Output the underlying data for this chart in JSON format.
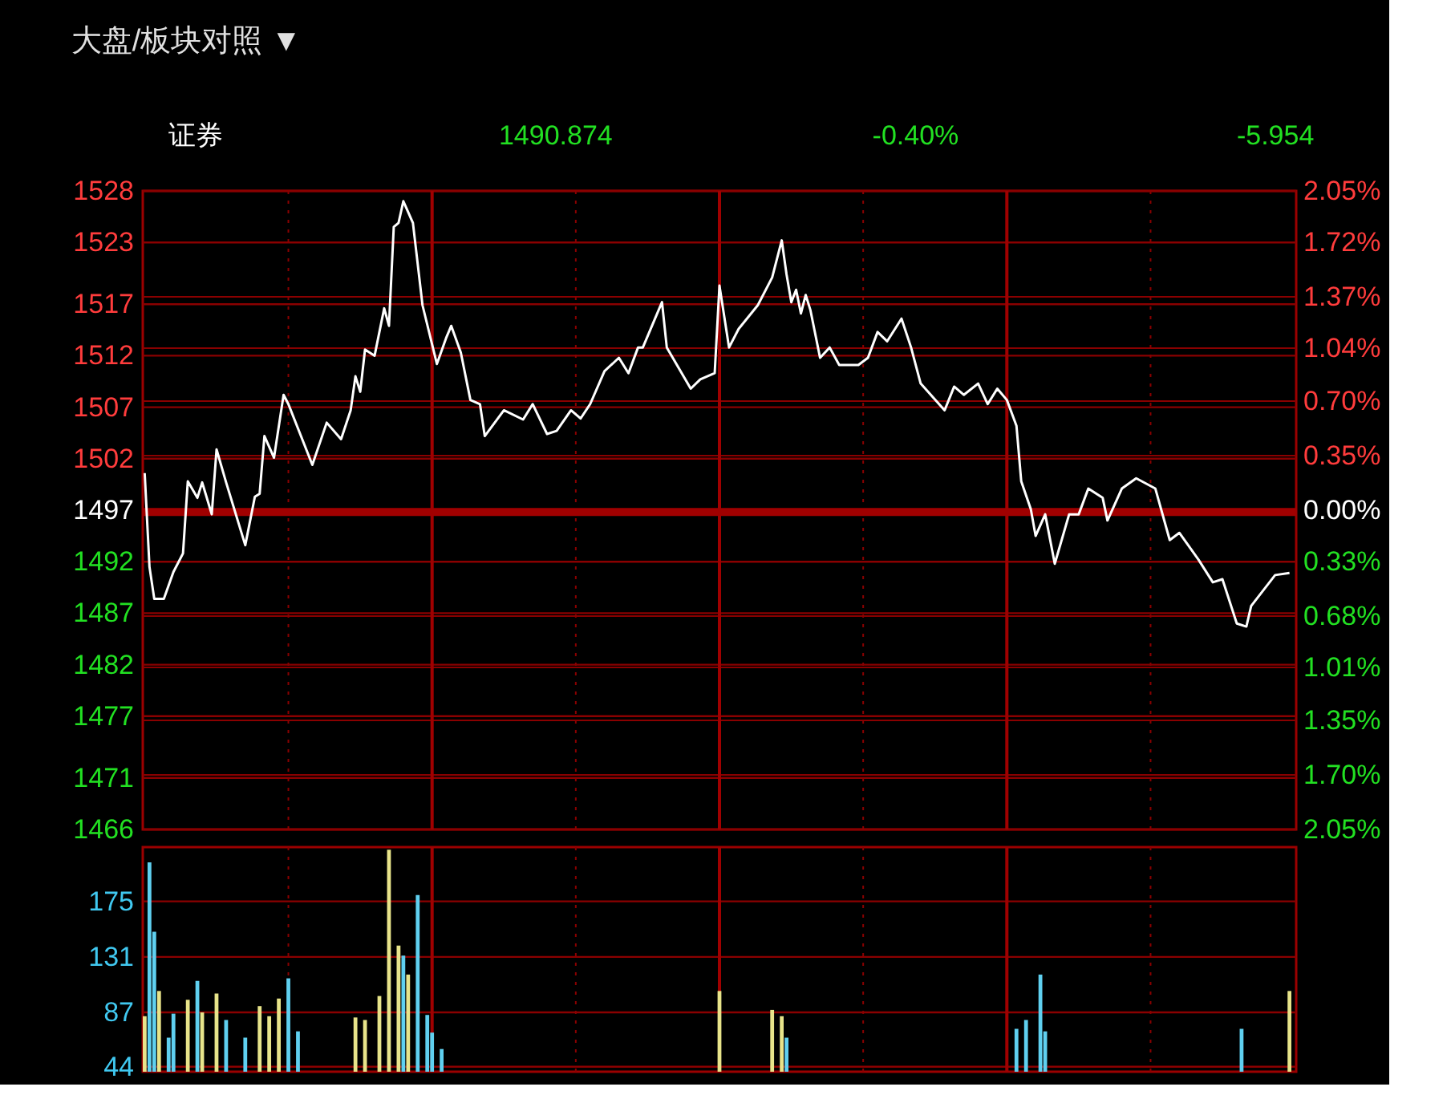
{
  "chart_data": [
    {
      "type": "line",
      "title": "大盘/板块对照 ▼",
      "annotations": [
        "证券",
        "1490.874",
        "-0.40%",
        "-5.954"
      ],
      "categories": [
        null,
        null,
        null,
        null,
        null,
        null,
        null,
        null,
        null,
        null,
        null,
        null,
        null,
        null,
        null,
        null,
        null,
        null,
        null,
        null,
        null,
        null,
        null,
        null,
        null,
        null,
        null,
        null,
        null,
        null,
        null,
        null,
        null,
        null,
        null,
        null,
        null,
        null,
        null,
        null,
        null,
        null,
        null,
        null,
        null,
        null,
        null,
        null,
        null,
        null,
        null,
        null,
        null,
        null,
        null,
        null,
        null,
        null,
        null,
        null,
        null,
        null,
        null,
        null,
        null,
        null,
        null,
        null,
        null,
        null,
        null,
        null,
        null,
        null,
        null,
        null,
        null,
        null,
        null,
        null,
        null,
        null,
        null,
        null,
        null,
        null,
        null,
        null,
        null,
        null,
        null,
        null,
        null,
        null,
        null,
        null,
        null,
        null,
        null,
        null,
        null,
        null,
        null,
        null,
        null,
        null,
        null,
        null,
        null,
        null,
        null,
        null,
        null,
        null,
        null,
        null,
        null,
        null,
        null,
        null,
        null,
        null,
        null,
        null,
        null,
        null,
        null,
        null,
        null,
        null,
        null,
        null,
        null,
        null,
        null,
        null,
        null,
        null,
        null,
        null,
        null,
        null,
        null,
        null,
        null,
        null,
        null,
        null,
        null,
        null,
        null,
        null,
        null,
        null,
        null,
        null,
        null,
        null,
        null,
        null,
        null,
        null,
        null,
        null,
        null,
        null,
        null,
        null,
        null,
        null,
        null,
        null,
        null,
        null,
        null,
        null,
        null,
        null,
        null,
        null,
        null,
        null,
        null,
        null,
        null,
        null,
        null,
        null,
        null,
        null,
        null,
        null,
        null,
        null,
        null,
        null,
        null,
        null,
        null,
        null,
        null,
        null,
        null,
        null,
        null,
        null,
        null,
        null,
        null,
        null,
        null,
        null,
        null,
        null,
        null,
        null,
        null,
        null,
        null,
        null,
        null,
        null,
        null,
        null,
        null,
        null,
        null,
        null,
        null,
        null,
        null,
        null,
        null,
        null,
        null,
        null,
        null,
        null,
        null,
        null,
        null
      ],
      "series": [
        {
          "color": "#ffffff",
          "values": [
            1500.6,
            1491.5,
            1488.4,
            null,
            1488.4,
            null,
            1491.0,
            null,
            1492.8,
            1499.8,
            null,
            1498.2,
            1499.7,
            null,
            1496.6,
            1502.9,
            null,
            1499.7,
            null,
            null,
            null,
            1493.6,
            null,
            1498.3,
            1498.6,
            1504.2,
            null,
            1502.1,
            null,
            1508.2,
            1507.3,
            null,
            null,
            null,
            null,
            1501.4,
            null,
            null,
            1505.5,
            null,
            null,
            1503.9,
            null,
            1506.7,
            1510.0,
            1508.5,
            1512.6,
            null,
            1512.0,
            null,
            1516.6,
            1514.9,
            1524.5,
            1524.9,
            1527.0,
            null,
            1524.9,
            null,
            1516.9,
            null,
            null,
            1511.2,
            null,
            1513.8,
            1514.9,
            null,
            1512.3,
            null,
            1507.7,
            null,
            1507.3,
            1504.2,
            null,
            null,
            null,
            1506.7,
            null,
            null,
            null,
            1505.8,
            null,
            1507.3,
            null,
            null,
            1504.4,
            null,
            1504.7,
            null,
            null,
            1506.7,
            null,
            1505.9,
            null,
            1507.3,
            null,
            null,
            1510.5,
            null,
            null,
            1511.8,
            null,
            1510.3,
            null,
            1512.8,
            1512.8,
            null,
            null,
            null,
            1517.2,
            1512.8,
            null,
            null,
            null,
            null,
            1508.8,
            null,
            1509.7,
            null,
            null,
            1510.3,
            1518.8,
            null,
            1512.8,
            null,
            1514.6,
            null,
            null,
            null,
            1516.9,
            null,
            null,
            1519.6,
            null,
            1523.2,
            1519.9,
            1517.2,
            1518.4,
            1516.1,
            1517.9,
            1516.4,
            null,
            1511.8,
            null,
            1512.8,
            null,
            1511.1,
            null,
            null,
            null,
            1511.1,
            null,
            1511.8,
            null,
            1514.3,
            null,
            1513.4,
            null,
            null,
            1515.6,
            null,
            1512.8,
            null,
            1509.3,
            null,
            null,
            null,
            null,
            1506.7,
            null,
            1509.0,
            null,
            1508.2,
            null,
            null,
            1509.3,
            null,
            1507.3,
            null,
            1508.8,
            null,
            1507.7,
            null,
            1505.2,
            1499.8,
            null,
            1497.1,
            1494.5,
            null,
            1496.6,
            null,
            1491.8,
            null,
            null,
            1496.6,
            null,
            1496.6,
            null,
            1499.1,
            null,
            null,
            1498.2,
            1496.0,
            null,
            null,
            1499.1,
            null,
            null,
            1500.1,
            null,
            null,
            null,
            1499.1,
            null,
            null,
            1494.1,
            null,
            1494.8,
            null,
            null,
            null,
            1492.2,
            null,
            null,
            1490.0,
            null,
            1490.3,
            null,
            null,
            1486.0,
            null,
            1485.7,
            1487.7,
            null,
            null,
            null,
            null,
            1490.7,
            null,
            null,
            1490.9,
            null
          ]
        }
      ],
      "ylim": [
        1466,
        1528
      ],
      "yticks": [
        1466,
        1471,
        1477,
        1482,
        1487,
        1492,
        1497,
        1502,
        1507,
        1512,
        1517,
        1523,
        1528
      ],
      "y2lim": [
        -2.05,
        2.05
      ],
      "y2ticks": [
        {
          "value": -2.05,
          "label": "2.05%"
        },
        {
          "value": -1.7,
          "label": "1.70%"
        },
        {
          "value": -1.35,
          "label": "1.35%"
        },
        {
          "value": -1.01,
          "label": "1.01%"
        },
        {
          "value": -0.68,
          "label": "0.68%"
        },
        {
          "value": -0.33,
          "label": "0.33%"
        },
        {
          "value": 0,
          "label": "0.00%"
        },
        {
          "value": 0.35,
          "label": "0.35%"
        },
        {
          "value": 0.7,
          "label": "0.70%"
        },
        {
          "value": 1.04,
          "label": "1.04%"
        },
        {
          "value": 1.37,
          "label": "1.37%"
        },
        {
          "value": 1.72,
          "label": "1.72%"
        },
        {
          "value": 2.05,
          "label": "2.05%"
        }
      ],
      "ref_lines": [
        {
          "axis": "y",
          "value": 1496.83,
          "color": "#a00000"
        }
      ],
      "grid": true,
      "tick_labels": "y"
    },
    {
      "type": "bar",
      "categories": [
        null,
        null,
        null,
        null,
        null,
        null,
        null,
        null,
        null,
        null,
        null,
        null,
        null,
        null,
        null,
        null,
        null,
        null,
        null,
        null,
        null,
        null,
        null,
        null,
        null,
        null,
        null,
        null,
        null,
        null,
        null,
        null,
        null,
        null,
        null,
        null,
        null,
        null,
        null,
        null,
        null,
        null,
        null,
        null,
        null,
        null,
        null,
        null,
        null,
        null,
        null,
        null,
        null,
        null,
        null,
        null,
        null,
        null,
        null,
        null,
        null,
        null,
        null,
        null,
        null,
        null,
        null,
        null,
        null,
        null,
        null,
        null,
        null,
        null,
        null,
        null,
        null,
        null,
        null,
        null,
        null,
        null,
        null,
        null,
        null,
        null,
        null,
        null,
        null,
        null,
        null,
        null,
        null,
        null,
        null,
        null,
        null,
        null,
        null,
        null,
        null,
        null,
        null,
        null,
        null,
        null,
        null,
        null,
        null,
        null,
        null,
        null,
        null,
        null,
        null,
        null,
        null,
        null,
        null,
        null,
        null,
        null,
        null,
        null,
        null,
        null,
        null,
        null,
        null,
        null,
        null,
        null,
        null,
        null,
        null,
        null,
        null,
        null,
        null,
        null,
        null,
        null,
        null,
        null,
        null,
        null,
        null,
        null,
        null,
        null,
        null,
        null,
        null,
        null,
        null,
        null,
        null,
        null,
        null,
        null,
        null,
        null,
        null,
        null,
        null,
        null,
        null,
        null,
        null,
        null,
        null,
        null,
        null,
        null,
        null,
        null,
        null,
        null,
        null,
        null,
        null,
        null,
        null,
        null,
        null,
        null,
        null,
        null,
        null,
        null,
        null,
        null,
        null,
        null,
        null,
        null,
        null,
        null,
        null,
        null,
        null,
        null,
        null,
        null,
        null,
        null,
        null,
        null,
        null,
        null,
        null,
        null,
        null,
        null,
        null,
        null,
        null,
        null,
        null,
        null,
        null,
        null,
        null,
        null,
        null,
        null,
        null,
        null,
        null,
        null,
        null,
        null,
        null,
        null,
        null,
        null,
        null,
        null,
        null,
        null,
        null
      ],
      "series": [
        {
          "color": "#e8e48a",
          "values": [
            84,
            null,
            null,
            104,
            null,
            null,
            null,
            null,
            null,
            97,
            null,
            null,
            87,
            null,
            null,
            102,
            null,
            null,
            null,
            null,
            null,
            null,
            null,
            null,
            92,
            null,
            84,
            null,
            98,
            null,
            null,
            null,
            null,
            null,
            null,
            null,
            null,
            null,
            null,
            null,
            null,
            null,
            null,
            null,
            83,
            null,
            81,
            null,
            null,
            100,
            null,
            216,
            null,
            140,
            null,
            117,
            null,
            null,
            null,
            null,
            null,
            null,
            null,
            null,
            null,
            null,
            null,
            null,
            null,
            null,
            null,
            null,
            null,
            null,
            null,
            null,
            null,
            null,
            null,
            null,
            null,
            null,
            null,
            null,
            null,
            null,
            null,
            null,
            null,
            null,
            null,
            null,
            null,
            null,
            null,
            null,
            null,
            null,
            null,
            null,
            null,
            null,
            null,
            null,
            null,
            null,
            null,
            null,
            null,
            null,
            null,
            null,
            null,
            null,
            null,
            null,
            null,
            null,
            null,
            null,
            104,
            null,
            null,
            null,
            null,
            null,
            null,
            null,
            null,
            null,
            null,
            89,
            null,
            84,
            null,
            null,
            null,
            null,
            null,
            null,
            null,
            null,
            null,
            null,
            null,
            null,
            null,
            null,
            null,
            null,
            null,
            null,
            null,
            null,
            null,
            null,
            null,
            null,
            null,
            null,
            null,
            null,
            null,
            null,
            null,
            null,
            null,
            null,
            null,
            null,
            null,
            null,
            null,
            null,
            null,
            null,
            null,
            null,
            null,
            null,
            null,
            null,
            null,
            null,
            null,
            null,
            null,
            null,
            null,
            null,
            null,
            null,
            null,
            null,
            null,
            null,
            null,
            null,
            null,
            null,
            null,
            null,
            null,
            null,
            null,
            null,
            null,
            null,
            null,
            null,
            null,
            null,
            null,
            null,
            null,
            null,
            null,
            null,
            null,
            null,
            null,
            null,
            null,
            null,
            null,
            null,
            null,
            null,
            null,
            null,
            null,
            null,
            null,
            null,
            null,
            null,
            null,
            null,
            null,
            104,
            null
          ]
        },
        {
          "color": "#5fd0f0",
          "values": [
            null,
            206,
            151,
            null,
            null,
            67,
            86,
            null,
            null,
            null,
            null,
            112,
            null,
            null,
            null,
            null,
            null,
            81,
            null,
            null,
            null,
            67,
            null,
            null,
            null,
            null,
            null,
            null,
            null,
            null,
            114,
            null,
            72,
            null,
            null,
            null,
            null,
            null,
            null,
            null,
            null,
            null,
            null,
            null,
            null,
            null,
            null,
            null,
            null,
            null,
            null,
            null,
            null,
            null,
            132,
            null,
            null,
            180,
            null,
            85,
            71,
            null,
            58,
            null,
            null,
            null,
            null,
            null,
            null,
            null,
            null,
            null,
            null,
            null,
            null,
            null,
            null,
            null,
            null,
            null,
            null,
            null,
            null,
            null,
            null,
            null,
            null,
            null,
            null,
            null,
            null,
            null,
            null,
            null,
            null,
            null,
            null,
            null,
            null,
            null,
            null,
            null,
            null,
            null,
            null,
            null,
            null,
            null,
            null,
            null,
            null,
            null,
            null,
            null,
            null,
            null,
            null,
            null,
            null,
            null,
            null,
            null,
            null,
            null,
            null,
            null,
            null,
            null,
            null,
            null,
            null,
            null,
            null,
            null,
            67,
            null,
            null,
            null,
            null,
            null,
            null,
            null,
            null,
            null,
            null,
            null,
            null,
            null,
            null,
            null,
            null,
            null,
            null,
            null,
            null,
            null,
            null,
            null,
            null,
            null,
            null,
            null,
            null,
            null,
            null,
            null,
            null,
            null,
            null,
            null,
            null,
            null,
            null,
            null,
            null,
            null,
            null,
            null,
            null,
            null,
            null,
            null,
            74,
            null,
            81,
            null,
            null,
            117,
            72,
            null,
            null,
            null,
            null,
            null,
            null,
            null,
            null,
            null,
            null,
            null,
            null,
            null,
            null,
            null,
            null,
            null,
            null,
            null,
            null,
            null,
            null,
            null,
            null,
            null,
            null,
            null,
            null,
            null,
            null,
            null,
            null,
            null,
            null,
            null,
            null,
            null,
            null,
            null,
            null,
            74,
            null,
            null,
            null,
            null,
            null,
            null,
            null,
            null,
            null,
            null,
            null
          ]
        }
      ],
      "ylim": [
        40,
        218
      ],
      "yticks": [
        44,
        87,
        131,
        175
      ],
      "grid": true,
      "tick_labels": "y"
    }
  ]
}
